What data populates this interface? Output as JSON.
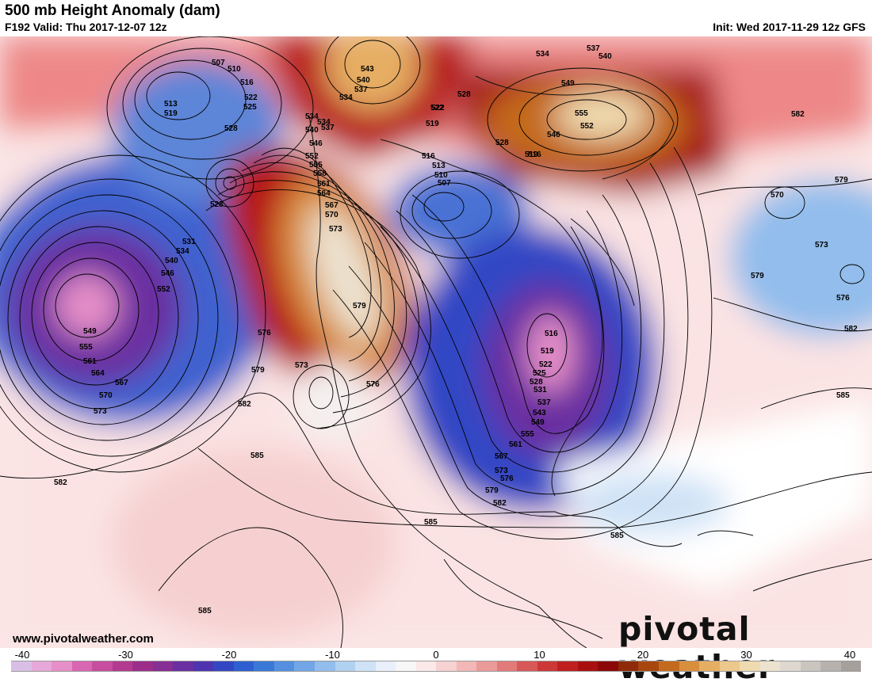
{
  "header": {
    "title": "500 mb Height Anomaly (dam)",
    "valid": "F192 Valid: Thu 2017-12-07 12z",
    "init": "Init: Wed 2017-11-29 12z GFS"
  },
  "footer": {
    "website": "www.pivotalweather.com",
    "brand": "pivotal weather"
  },
  "colorbar": {
    "ticks": [
      "-40",
      "-30",
      "-20",
      "-10",
      "0",
      "10",
      "20",
      "30",
      "40"
    ],
    "colors": [
      "#d9bfe6",
      "#e6a8d9",
      "#e68fc8",
      "#d966b3",
      "#c74d9e",
      "#b33a8f",
      "#9c2e8a",
      "#862f94",
      "#6a2fa0",
      "#4e34b0",
      "#3347c4",
      "#2e5fd0",
      "#3a78d8",
      "#5590e0",
      "#72a6e6",
      "#92bdec",
      "#b1d1f1",
      "#cfe2f6",
      "#e9f0fa",
      "#f7f7f7",
      "#fbe9e9",
      "#f7d2d2",
      "#f2b8b8",
      "#eb9a9a",
      "#e27a7a",
      "#d85858",
      "#cc3838",
      "#bf1f1f",
      "#a81010",
      "#8c0808",
      "#8f2a0a",
      "#a8460e",
      "#c46a1e",
      "#d98e3c",
      "#e6ae63",
      "#edc88c",
      "#f0dbb0",
      "#ece2cf",
      "#ded8d0",
      "#cbc5c0",
      "#b8b2ae",
      "#a5a09c"
    ]
  },
  "contour_labels": {
    "ring_pacific_low": [
      "549",
      "555",
      "561",
      "564",
      "567",
      "570",
      "573"
    ],
    "ring_pacific_low_north": [
      "531",
      "534",
      "540",
      "546",
      "552"
    ],
    "aleutian": [
      "507",
      "510",
      "513",
      "516",
      "519",
      "522",
      "525",
      "528"
    ],
    "gulf_low": [
      "528"
    ],
    "ridge_west": [
      "537",
      "540",
      "546",
      "552",
      "555",
      "558",
      "561",
      "564",
      "567",
      "570",
      "573",
      "579"
    ],
    "ridge_west_north": [
      "534",
      "534"
    ],
    "arctic_high": [
      "543",
      "540",
      "537",
      "534"
    ],
    "hudson_low": [
      "516",
      "513",
      "510",
      "507",
      "519",
      "522"
    ],
    "baffin": [
      "528",
      "528",
      "522",
      "519",
      "516"
    ],
    "greenland": [
      "537",
      "540",
      "534",
      "549",
      "555",
      "552",
      "546"
    ],
    "trough_east": [
      "516",
      "519",
      "522",
      "525",
      "528",
      "531",
      "537",
      "543",
      "549",
      "555",
      "561",
      "567",
      "573",
      "576",
      "579",
      "582"
    ],
    "atlantic": [
      "570",
      "573",
      "576",
      "579",
      "582",
      "585",
      "579"
    ],
    "southwest": [
      "576",
      "573",
      "579",
      "582",
      "585",
      "576"
    ],
    "tropics": [
      "585",
      "585",
      "582",
      "585"
    ]
  }
}
